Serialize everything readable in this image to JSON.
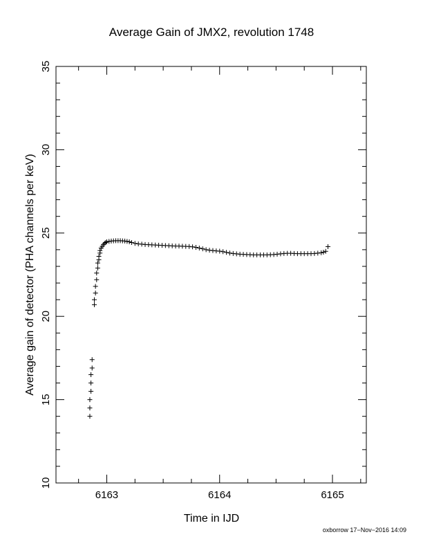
{
  "chart_data": {
    "type": "scatter",
    "title": "Average Gain of JMX2, revolution 1748",
    "xlabel": "Time in IJD",
    "ylabel": "Average gain of detector (PHA channels per keV)",
    "xlim": [
      6162.55,
      6165.3
    ],
    "ylim": [
      10,
      35
    ],
    "x_ticks": [
      "6163",
      "6164",
      "6165"
    ],
    "y_ticks": [
      "10",
      "15",
      "20",
      "25",
      "30",
      "35"
    ],
    "marker": "plus",
    "grid": false,
    "legend": "none",
    "series": [
      {
        "points": [
          [
            6162.85,
            14.0
          ],
          [
            6162.85,
            14.5
          ],
          [
            6162.85,
            15.0
          ],
          [
            6162.86,
            15.5
          ],
          [
            6162.86,
            16.0
          ],
          [
            6162.86,
            16.5
          ],
          [
            6162.87,
            16.9
          ],
          [
            6162.87,
            17.4
          ],
          [
            6162.89,
            20.7
          ],
          [
            6162.89,
            21.0
          ],
          [
            6162.9,
            21.4
          ],
          [
            6162.9,
            21.8
          ],
          [
            6162.91,
            22.2
          ],
          [
            6162.91,
            22.6
          ],
          [
            6162.92,
            22.9
          ],
          [
            6162.92,
            23.2
          ],
          [
            6162.93,
            23.4
          ],
          [
            6162.93,
            23.6
          ],
          [
            6162.94,
            23.8
          ],
          [
            6162.94,
            23.95
          ],
          [
            6162.95,
            24.1
          ],
          [
            6162.96,
            24.2
          ],
          [
            6162.97,
            24.3
          ],
          [
            6162.98,
            24.38
          ],
          [
            6162.99,
            24.43
          ],
          [
            6163.0,
            24.47
          ],
          [
            6163.02,
            24.5
          ],
          [
            6163.04,
            24.52
          ],
          [
            6163.06,
            24.53
          ],
          [
            6163.08,
            24.54
          ],
          [
            6163.1,
            24.54
          ],
          [
            6163.12,
            24.54
          ],
          [
            6163.14,
            24.53
          ],
          [
            6163.16,
            24.52
          ],
          [
            6163.18,
            24.5
          ],
          [
            6163.2,
            24.47
          ],
          [
            6163.22,
            24.43
          ],
          [
            6163.25,
            24.38
          ],
          [
            6163.28,
            24.35
          ],
          [
            6163.31,
            24.33
          ],
          [
            6163.34,
            24.31
          ],
          [
            6163.37,
            24.3
          ],
          [
            6163.4,
            24.29
          ],
          [
            6163.43,
            24.28
          ],
          [
            6163.46,
            24.27
          ],
          [
            6163.49,
            24.26
          ],
          [
            6163.52,
            24.25
          ],
          [
            6163.55,
            24.24
          ],
          [
            6163.58,
            24.23
          ],
          [
            6163.61,
            24.22
          ],
          [
            6163.64,
            24.22
          ],
          [
            6163.67,
            24.21
          ],
          [
            6163.7,
            24.2
          ],
          [
            6163.73,
            24.19
          ],
          [
            6163.76,
            24.17
          ],
          [
            6163.79,
            24.14
          ],
          [
            6163.82,
            24.1
          ],
          [
            6163.85,
            24.05
          ],
          [
            6163.88,
            24.0
          ],
          [
            6163.91,
            23.97
          ],
          [
            6163.94,
            23.95
          ],
          [
            6163.97,
            23.93
          ],
          [
            6164.0,
            23.91
          ],
          [
            6164.03,
            23.88
          ],
          [
            6164.06,
            23.84
          ],
          [
            6164.09,
            23.8
          ],
          [
            6164.12,
            23.77
          ],
          [
            6164.15,
            23.75
          ],
          [
            6164.18,
            23.73
          ],
          [
            6164.21,
            23.72
          ],
          [
            6164.24,
            23.71
          ],
          [
            6164.27,
            23.7
          ],
          [
            6164.3,
            23.69
          ],
          [
            6164.33,
            23.69
          ],
          [
            6164.36,
            23.69
          ],
          [
            6164.39,
            23.69
          ],
          [
            6164.42,
            23.69
          ],
          [
            6164.45,
            23.7
          ],
          [
            6164.48,
            23.71
          ],
          [
            6164.51,
            23.73
          ],
          [
            6164.54,
            23.75
          ],
          [
            6164.57,
            23.77
          ],
          [
            6164.6,
            23.78
          ],
          [
            6164.63,
            23.78
          ],
          [
            6164.66,
            23.77
          ],
          [
            6164.69,
            23.76
          ],
          [
            6164.72,
            23.76
          ],
          [
            6164.75,
            23.76
          ],
          [
            6164.78,
            23.76
          ],
          [
            6164.81,
            23.76
          ],
          [
            6164.84,
            23.77
          ],
          [
            6164.87,
            23.79
          ],
          [
            6164.9,
            23.82
          ],
          [
            6164.92,
            23.85
          ],
          [
            6164.94,
            23.9
          ],
          [
            6164.96,
            24.18
          ]
        ]
      }
    ]
  },
  "footer": {
    "credit": "oxborrow 17−Nov−2016 14:09"
  }
}
